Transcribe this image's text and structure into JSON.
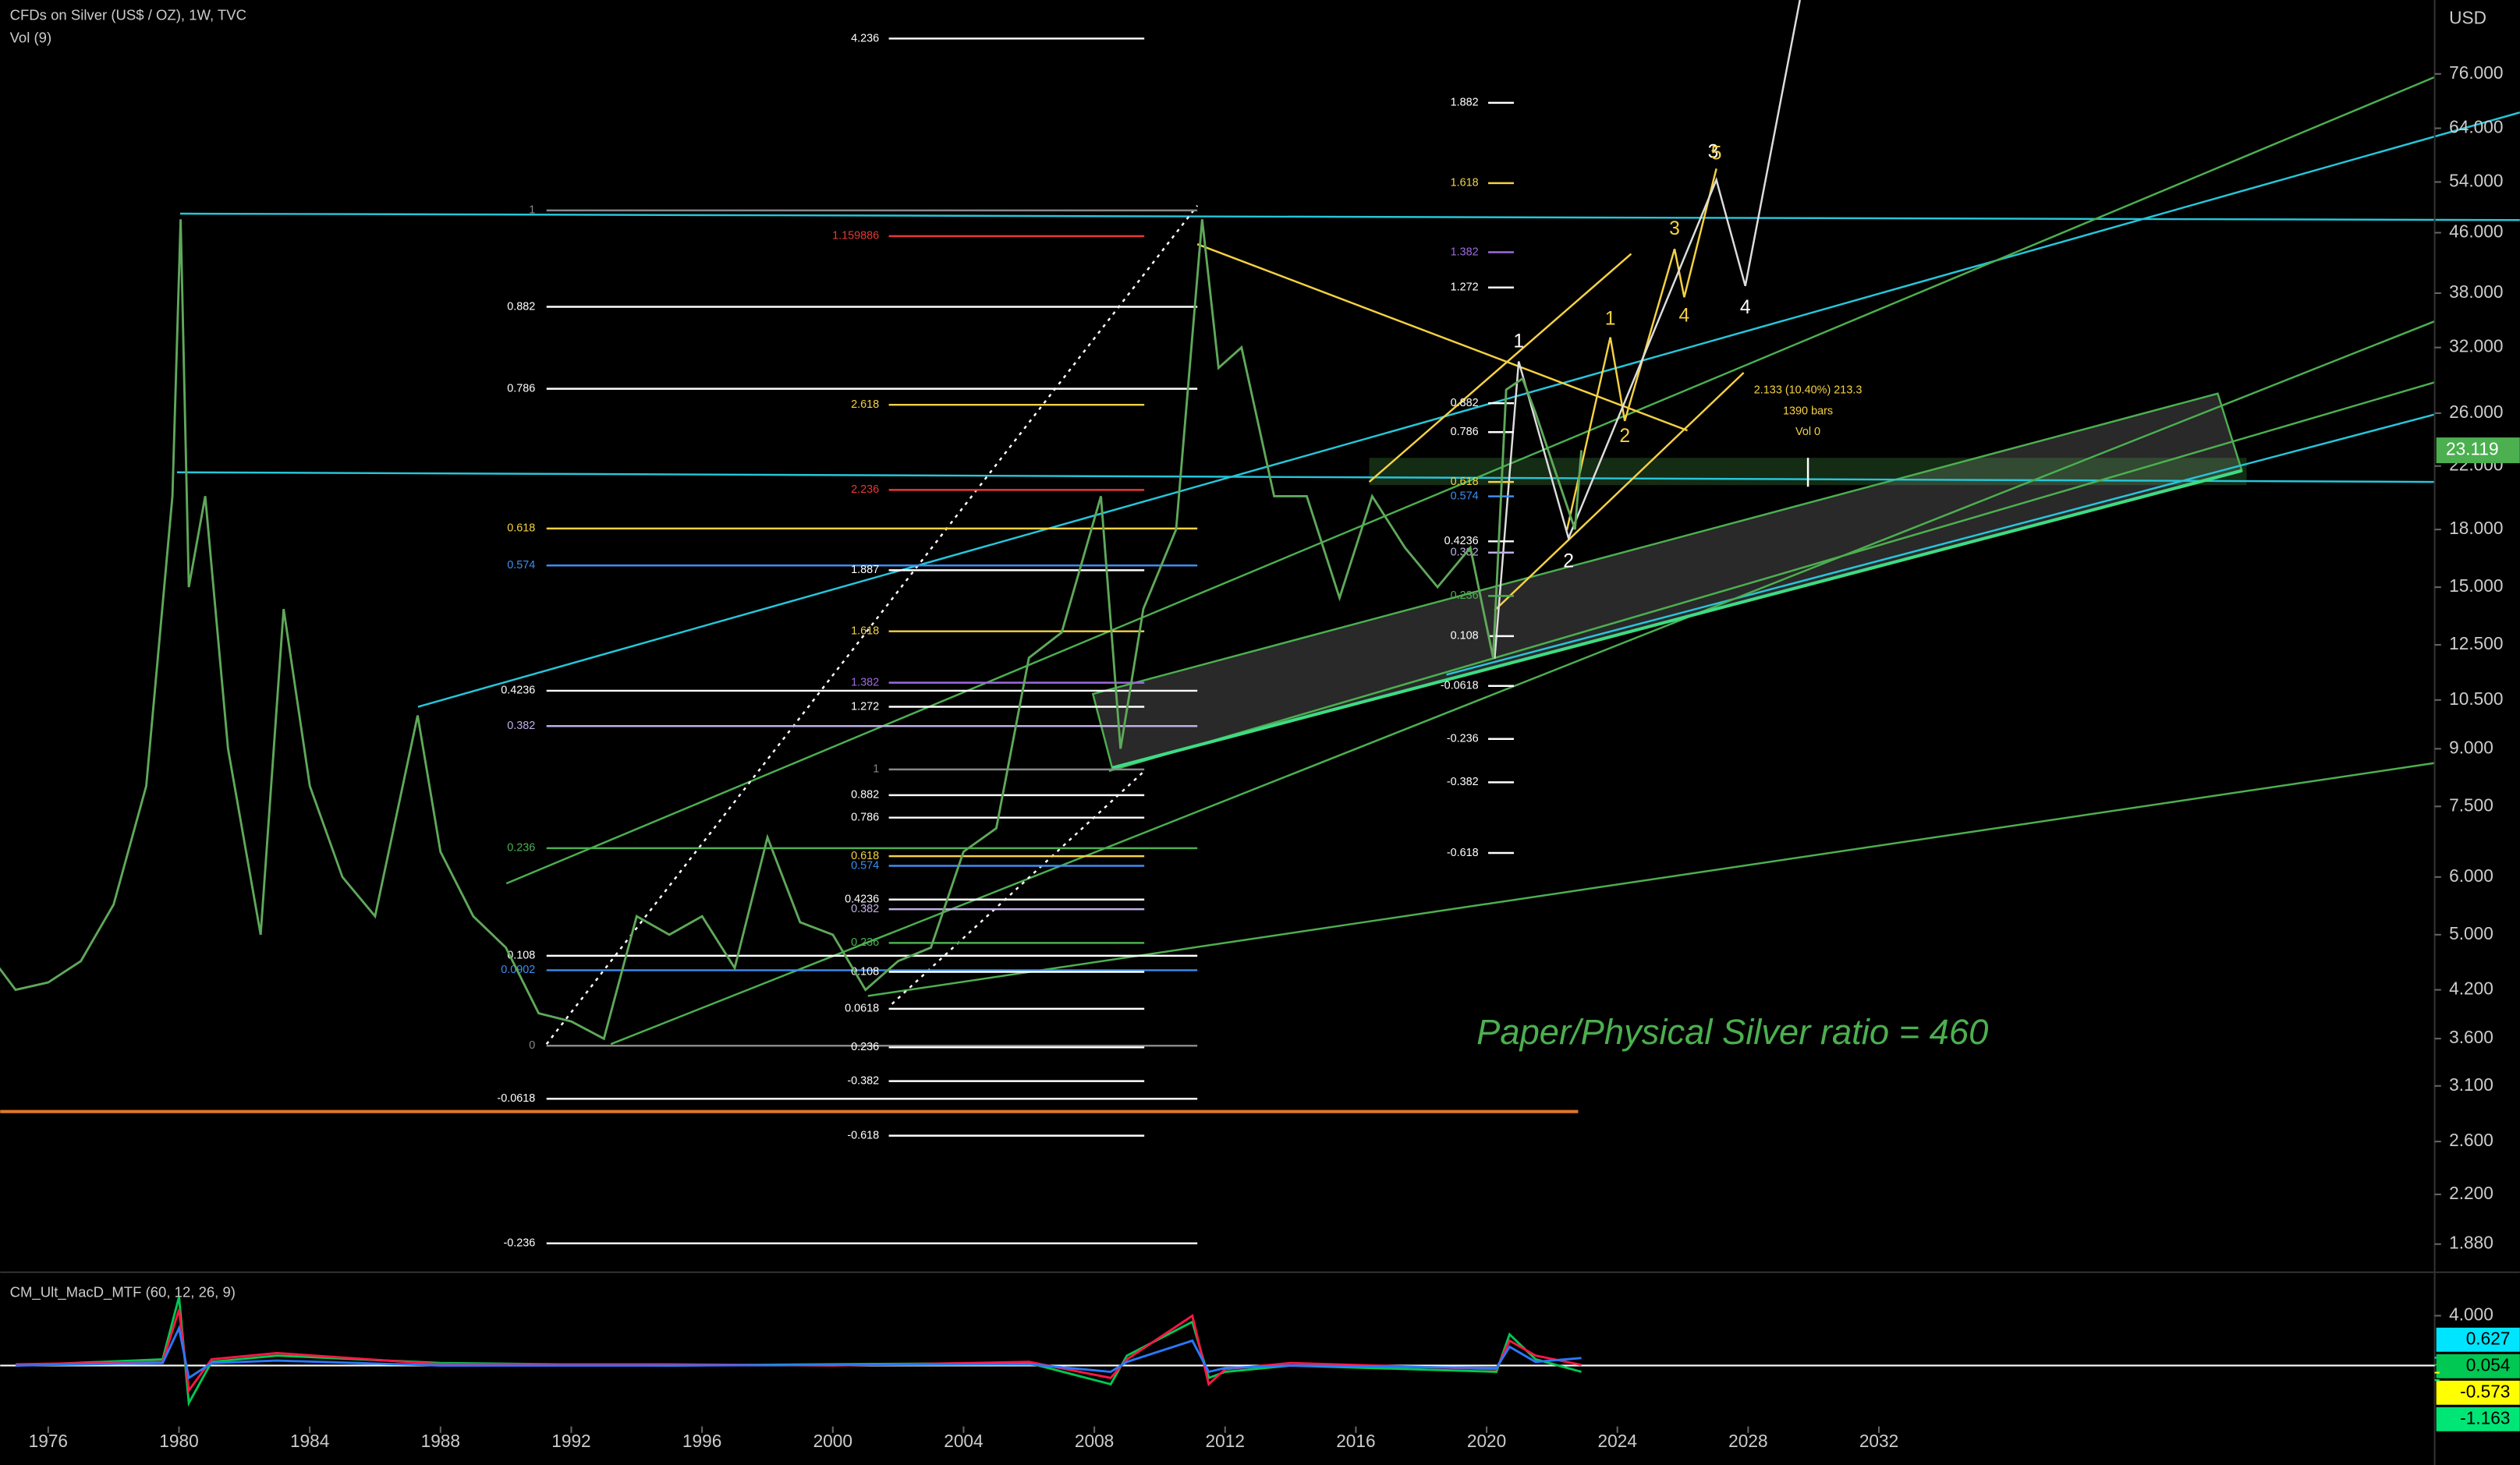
{
  "chart_data": [
    {
      "type": "line",
      "title": "CFDs on Silver (US$ / OZ), 1W, TVC",
      "subtitle": "Vol (9)",
      "y_axis_label": "USD",
      "log_scale": true,
      "color": "#5fa85a",
      "x": [
        1974.5,
        1975,
        1976,
        1977,
        1978,
        1979,
        1979.8,
        1980.05,
        1980.3,
        1980.8,
        1981.5,
        1982.5,
        1983.2,
        1984,
        1985,
        1986,
        1987.3,
        1988,
        1989,
        1990,
        1991,
        1992,
        1993,
        1994,
        1995,
        1996,
        1997,
        1998,
        1999,
        2000,
        2001,
        2002,
        2003,
        2004,
        2005,
        2006,
        2007,
        2008.2,
        2008.8,
        2009.5,
        2010.5,
        2011.3,
        2011.8,
        2012.5,
        2013.5,
        2014.5,
        2015.5,
        2016.5,
        2017.5,
        2018.5,
        2019.5,
        2020.2,
        2020.6,
        2021.1,
        2021.5,
        2022.7,
        2022.9
      ],
      "values": [
        4.5,
        4.2,
        4.3,
        4.6,
        5.5,
        8,
        20,
        48,
        15,
        20,
        9,
        5,
        14,
        8,
        6,
        5.3,
        10,
        6.5,
        5.3,
        4.8,
        3.9,
        3.8,
        3.6,
        5.3,
        5,
        5.3,
        4.5,
        6.8,
        5.2,
        5,
        4.2,
        4.6,
        4.8,
        6.5,
        7,
        12,
        13,
        20,
        9,
        14,
        18,
        48,
        30,
        32,
        20,
        20,
        14.5,
        20,
        17,
        15,
        17,
        12,
        28,
        29,
        26,
        18,
        23.119
      ],
      "current_price": 23.119,
      "current_price_label": "23.119",
      "xlim": [
        1974.53,
        2049
      ],
      "xticks": [
        1976,
        1980,
        1984,
        1988,
        1992,
        1996,
        2000,
        2004,
        2008,
        2012,
        2016,
        2020,
        2024,
        2028,
        2032
      ],
      "ylim": [
        1.72,
        96
      ],
      "yticks": [
        {
          "value": 76,
          "label": "76.000"
        },
        {
          "value": 64,
          "label": "64.000"
        },
        {
          "value": 54,
          "label": "54.000"
        },
        {
          "value": 46,
          "label": "46.000"
        },
        {
          "value": 38,
          "label": "38.000"
        },
        {
          "value": 32,
          "label": "32.000"
        },
        {
          "value": 26,
          "label": "26.000"
        },
        {
          "value": 22,
          "label": "22.000"
        },
        {
          "value": 18,
          "label": "18.000"
        },
        {
          "value": 15,
          "label": "15.000"
        },
        {
          "value": 12.5,
          "label": "12.500"
        },
        {
          "value": 10.5,
          "label": "10.500"
        },
        {
          "value": 9,
          "label": "9.000"
        },
        {
          "value": 7.5,
          "label": "7.500"
        },
        {
          "value": 6,
          "label": "6.000"
        },
        {
          "value": 5,
          "label": "5.000"
        },
        {
          "value": 4.2,
          "label": "4.200"
        },
        {
          "value": 3.6,
          "label": "3.600"
        },
        {
          "value": 3.1,
          "label": "3.100"
        },
        {
          "value": 2.6,
          "label": "2.600"
        },
        {
          "value": 2.2,
          "label": "2.200"
        },
        {
          "value": 1.88,
          "label": "1.880"
        }
      ],
      "fib_groups": [
        {
          "levels": [
            {
              "label": "1",
              "color": "#888888"
            },
            {
              "label": "0.882",
              "color": "#ffffff"
            },
            {
              "label": "0.786",
              "color": "#ffffff"
            },
            {
              "label": "0.618",
              "color": "#f5d142"
            },
            {
              "label": "0.574",
              "color": "#3d8ef0"
            },
            {
              "label": "0.4236",
              "color": "#ffffff"
            },
            {
              "label": "0.382",
              "color": "#c0b0e8"
            },
            {
              "label": "0.236",
              "color": "#4caf50"
            },
            {
              "label": "0.108",
              "color": "#ffffff"
            },
            {
              "label": "0.0902",
              "color": "#3d8ef0"
            },
            {
              "label": "0",
              "color": "#888888"
            },
            {
              "label": "-0.0618",
              "color": "#ffffff"
            },
            {
              "label": "-0.236",
              "color": "#ffffff"
            }
          ]
        },
        {
          "levels": [
            {
              "label": "4.236",
              "color": "#ffffff"
            },
            {
              "label": "1.159886",
              "color": "#e53935"
            },
            {
              "label": "2.618",
              "color": "#f5d142"
            },
            {
              "label": "2.236",
              "color": "#e53935"
            },
            {
              "label": "1.887",
              "color": "#ffffff"
            },
            {
              "label": "1.618",
              "color": "#f5d142"
            },
            {
              "label": "1.382",
              "color": "#9c6ade"
            },
            {
              "label": "1.272",
              "color": "#ffffff"
            },
            {
              "label": "1",
              "color": "#888888"
            },
            {
              "label": "0.882",
              "color": "#ffffff"
            },
            {
              "label": "0.786",
              "color": "#ffffff"
            },
            {
              "label": "0.618",
              "color": "#f5d142"
            },
            {
              "label": "0.574",
              "color": "#3d8ef0"
            },
            {
              "label": "0.4236",
              "color": "#ffffff"
            },
            {
              "label": "0.382",
              "color": "#c0b0e8"
            },
            {
              "label": "0.236",
              "color": "#4caf50"
            },
            {
              "label": "0.108",
              "color": "#ffffff"
            },
            {
              "label": "0.0618",
              "color": "#ffffff"
            },
            {
              "label": "0.236",
              "color": "#ffffff"
            },
            {
              "label": "-0.382",
              "color": "#ffffff"
            },
            {
              "label": "-0.618",
              "color": "#ffffff"
            }
          ]
        },
        {
          "levels": [
            {
              "label": "1.882",
              "color": "#ffffff"
            },
            {
              "label": "1.618",
              "color": "#f5d142"
            },
            {
              "label": "1.382",
              "color": "#9c6ade"
            },
            {
              "label": "1.272",
              "color": "#ffffff"
            },
            {
              "label": "0.882",
              "color": "#ffffff"
            },
            {
              "label": "0.786",
              "color": "#ffffff"
            },
            {
              "label": "0.618",
              "color": "#f5d142"
            },
            {
              "label": "0.574",
              "color": "#3d8ef0"
            },
            {
              "label": "0.4236",
              "color": "#ffffff"
            },
            {
              "label": "0.382",
              "color": "#c0b0e8"
            },
            {
              "label": "0.236",
              "color": "#4caf50"
            },
            {
              "label": "0.108",
              "color": "#ffffff"
            },
            {
              "label": "-0.0618",
              "color": "#ffffff"
            },
            {
              "label": "-0.236",
              "color": "#ffffff"
            },
            {
              "label": "-0.382",
              "color": "#ffffff"
            },
            {
              "label": "-0.618",
              "color": "#ffffff"
            }
          ]
        }
      ],
      "waves": [
        {
          "label": "1",
          "color": "#ffffff"
        },
        {
          "label": "2",
          "color": "#ffffff"
        },
        {
          "label": "3",
          "color": "#ffffff"
        },
        {
          "label": "4",
          "color": "#ffffff"
        },
        {
          "label": "1",
          "color": "#f5d142"
        },
        {
          "label": "2",
          "color": "#f5d142"
        },
        {
          "label": "3",
          "color": "#f5d142"
        },
        {
          "label": "4",
          "color": "#f5d142"
        },
        {
          "label": "5",
          "color": "#f5d142"
        }
      ],
      "measure": [
        "2.133 (10.40%) 213.3",
        "1390 bars",
        "Vol 0"
      ],
      "annotation": "Paper/Physical Silver ratio = 460"
    },
    {
      "type": "line",
      "title": "CM_Ult_MacD_MTF (60, 12, 26, 9)",
      "x": [
        1975,
        1979.5,
        1980,
        1980.3,
        1981,
        1983,
        1988,
        1995,
        2000,
        2006,
        2008.5,
        2009,
        2011,
        2011.5,
        2012,
        2014,
        2020.3,
        2020.7,
        2021.5,
        2022.9
      ],
      "series": [
        {
          "color": "#00c853",
          "values": [
            0,
            0.5,
            5.5,
            -3,
            0.3,
            0.8,
            0.2,
            0,
            0.1,
            0.2,
            -1.5,
            0.8,
            3.5,
            -1,
            -0.5,
            0,
            -0.5,
            2.5,
            0.5,
            -0.5
          ]
        },
        {
          "color": "#ff1744",
          "values": [
            0.1,
            0.3,
            4.5,
            -2,
            0.5,
            1,
            0.1,
            0.1,
            0,
            0.3,
            -1,
            0.5,
            4,
            -1.5,
            -0.3,
            0.2,
            -0.3,
            2,
            0.8,
            0.05
          ]
        },
        {
          "color": "#2979ff",
          "values": [
            0,
            0.2,
            3,
            -1,
            0.2,
            0.4,
            0,
            0,
            0.05,
            0.1,
            -0.5,
            0.3,
            2,
            -0.5,
            -0.2,
            0,
            -0.2,
            1.5,
            0.3,
            0.6
          ]
        }
      ],
      "ylim": [
        -4.5,
        7.1
      ],
      "yticks": [
        {
          "value": 4,
          "label": "4.000"
        }
      ],
      "last_values": [
        0.627,
        0.054,
        -0.573,
        -1.163
      ],
      "last_value_labels": [
        "0.627",
        "0.054",
        "-0.573",
        "-1.163"
      ],
      "last_value_colors": [
        "#00e5ff",
        "#00c853",
        "#ffff00",
        "#00e676"
      ]
    }
  ]
}
